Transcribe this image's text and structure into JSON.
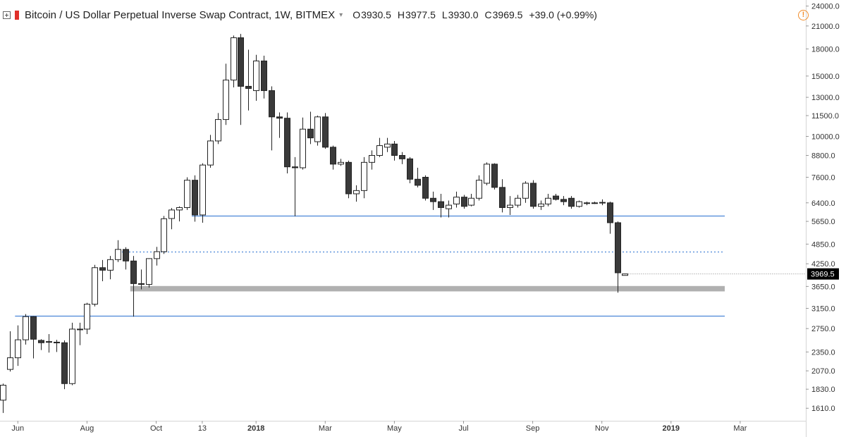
{
  "header": {
    "title": "Bitcoin / US Dollar Perpetual Inverse Swap Contract, 1W, BITMEX",
    "caret": "▾",
    "open_label": "O",
    "open": "3930.5",
    "high_label": "H",
    "high": "3977.5",
    "low_label": "L",
    "low": "3930.0",
    "close_label": "C",
    "close": "3969.5",
    "change": "+39.0 (+0.99%)",
    "alert": "!"
  },
  "colors": {
    "bull_fill": "#ffffff",
    "bear_fill": "#3a3a3a",
    "candle_outline": "#222222",
    "level_line": "#4a86d8",
    "zone": "#b0b0b0",
    "axis_border": "#d6d6d6",
    "price_label_bg": "#000000",
    "alert": "#f08c2a"
  },
  "chart_data": {
    "type": "candlestick",
    "interval": "1W",
    "y_scale": "log",
    "y_range": [
      1480,
      25000
    ],
    "y_ticks": [
      "24000.0",
      "21000.0",
      "18000.0",
      "15000.0",
      "13000.0",
      "11500.0",
      "10000.0",
      "8800.0",
      "7600.0",
      "6400.0",
      "5650.0",
      "4850.0",
      "4250.0",
      "3650.0",
      "3150.0",
      "2750.0",
      "2350.0",
      "2070.0",
      "1830.0",
      "1610.0"
    ],
    "last_price_label": "3969.5",
    "x_ticks": [
      {
        "label": "Jun",
        "week": 2,
        "bold": false
      },
      {
        "label": "Aug",
        "week": 11,
        "bold": false
      },
      {
        "label": "Oct",
        "week": 20,
        "bold": false
      },
      {
        "label": "13",
        "week": 26,
        "bold": false
      },
      {
        "label": "2018",
        "week": 33,
        "bold": true
      },
      {
        "label": "Mar",
        "week": 42,
        "bold": false
      },
      {
        "label": "May",
        "week": 51,
        "bold": false
      },
      {
        "label": "Jul",
        "week": 60,
        "bold": false
      },
      {
        "label": "Sep",
        "week": 69,
        "bold": false
      },
      {
        "label": "Nov",
        "week": 78,
        "bold": false
      },
      {
        "label": "2019",
        "week": 87,
        "bold": true
      },
      {
        "label": "Mar",
        "week": 96,
        "bold": false
      }
    ],
    "candles": [
      {
        "o": 1700,
        "h": 1900,
        "l": 1560,
        "c": 1880
      },
      {
        "o": 2090,
        "h": 2700,
        "l": 2060,
        "c": 2260
      },
      {
        "o": 2260,
        "h": 2810,
        "l": 2140,
        "c": 2550
      },
      {
        "o": 2550,
        "h": 3030,
        "l": 2470,
        "c": 2980
      },
      {
        "o": 2980,
        "h": 2990,
        "l": 2250,
        "c": 2560
      },
      {
        "o": 2540,
        "h": 2560,
        "l": 2380,
        "c": 2500
      },
      {
        "o": 2510,
        "h": 2650,
        "l": 2340,
        "c": 2520
      },
      {
        "o": 2510,
        "h": 2550,
        "l": 2350,
        "c": 2500
      },
      {
        "o": 2500,
        "h": 2540,
        "l": 1830,
        "c": 1900
      },
      {
        "o": 1900,
        "h": 2860,
        "l": 1880,
        "c": 2740
      },
      {
        "o": 2740,
        "h": 2860,
        "l": 2460,
        "c": 2740
      },
      {
        "o": 2740,
        "h": 3270,
        "l": 2650,
        "c": 3240
      },
      {
        "o": 3240,
        "h": 4220,
        "l": 3190,
        "c": 4140
      },
      {
        "o": 4140,
        "h": 4360,
        "l": 3780,
        "c": 4070
      },
      {
        "o": 4070,
        "h": 4480,
        "l": 3830,
        "c": 4370
      },
      {
        "o": 4370,
        "h": 4980,
        "l": 4300,
        "c": 4680
      },
      {
        "o": 4680,
        "h": 4750,
        "l": 4090,
        "c": 4330
      },
      {
        "o": 4330,
        "h": 4480,
        "l": 2980,
        "c": 3720
      },
      {
        "o": 3720,
        "h": 4090,
        "l": 3580,
        "c": 3700
      },
      {
        "o": 3700,
        "h": 4410,
        "l": 3620,
        "c": 4400
      },
      {
        "o": 4400,
        "h": 4760,
        "l": 4200,
        "c": 4610
      },
      {
        "o": 4610,
        "h": 5860,
        "l": 4540,
        "c": 5750
      },
      {
        "o": 5760,
        "h": 6180,
        "l": 5360,
        "c": 6100
      },
      {
        "o": 6100,
        "h": 6250,
        "l": 5650,
        "c": 6200
      },
      {
        "o": 6200,
        "h": 7600,
        "l": 6100,
        "c": 7450
      },
      {
        "o": 7450,
        "h": 7700,
        "l": 5640,
        "c": 5900
      },
      {
        "o": 5900,
        "h": 8350,
        "l": 5600,
        "c": 8250
      },
      {
        "o": 8250,
        "h": 10100,
        "l": 8100,
        "c": 9700
      },
      {
        "o": 9700,
        "h": 11700,
        "l": 9500,
        "c": 11200
      },
      {
        "o": 11200,
        "h": 16300,
        "l": 10800,
        "c": 14600
      },
      {
        "o": 14600,
        "h": 19700,
        "l": 13900,
        "c": 19400
      },
      {
        "o": 19400,
        "h": 19900,
        "l": 10800,
        "c": 14000
      },
      {
        "o": 14000,
        "h": 17900,
        "l": 11900,
        "c": 13800
      },
      {
        "o": 13600,
        "h": 17300,
        "l": 12700,
        "c": 16600
      },
      {
        "o": 16600,
        "h": 17200,
        "l": 12900,
        "c": 13600
      },
      {
        "o": 13600,
        "h": 14000,
        "l": 9100,
        "c": 11400
      },
      {
        "o": 11400,
        "h": 11750,
        "l": 9900,
        "c": 11300
      },
      {
        "o": 11300,
        "h": 11750,
        "l": 7800,
        "c": 8150
      },
      {
        "o": 8150,
        "h": 8700,
        "l": 5850,
        "c": 8100
      },
      {
        "o": 8100,
        "h": 11350,
        "l": 8000,
        "c": 10500
      },
      {
        "o": 10500,
        "h": 11800,
        "l": 9500,
        "c": 9900
      },
      {
        "o": 9650,
        "h": 11500,
        "l": 9400,
        "c": 11400
      },
      {
        "o": 11400,
        "h": 11700,
        "l": 9200,
        "c": 9300
      },
      {
        "o": 9300,
        "h": 9400,
        "l": 8000,
        "c": 8300
      },
      {
        "o": 8300,
        "h": 8600,
        "l": 8200,
        "c": 8400
      },
      {
        "o": 8400,
        "h": 8500,
        "l": 6600,
        "c": 6800
      },
      {
        "o": 6800,
        "h": 7200,
        "l": 6450,
        "c": 6950
      },
      {
        "o": 6950,
        "h": 8700,
        "l": 6600,
        "c": 8400
      },
      {
        "o": 8400,
        "h": 9100,
        "l": 8000,
        "c": 8800
      },
      {
        "o": 8800,
        "h": 9900,
        "l": 8700,
        "c": 9400
      },
      {
        "o": 9300,
        "h": 9900,
        "l": 9000,
        "c": 9500
      },
      {
        "o": 9500,
        "h": 9700,
        "l": 8500,
        "c": 8800
      },
      {
        "o": 8800,
        "h": 9000,
        "l": 8300,
        "c": 8600
      },
      {
        "o": 8600,
        "h": 8700,
        "l": 7300,
        "c": 7500
      },
      {
        "o": 7500,
        "h": 8100,
        "l": 7100,
        "c": 7200
      },
      {
        "o": 7600,
        "h": 7700,
        "l": 6500,
        "c": 6600
      },
      {
        "o": 6600,
        "h": 6900,
        "l": 6100,
        "c": 6450
      },
      {
        "o": 6450,
        "h": 6800,
        "l": 5800,
        "c": 6200
      },
      {
        "o": 6150,
        "h": 6500,
        "l": 5800,
        "c": 6300
      },
      {
        "o": 6350,
        "h": 6900,
        "l": 6200,
        "c": 6650
      },
      {
        "o": 6650,
        "h": 6750,
        "l": 6150,
        "c": 6250
      },
      {
        "o": 6300,
        "h": 6800,
        "l": 6250,
        "c": 6600
      },
      {
        "o": 6600,
        "h": 7700,
        "l": 6500,
        "c": 7450
      },
      {
        "o": 7300,
        "h": 8400,
        "l": 7200,
        "c": 8300
      },
      {
        "o": 8300,
        "h": 8350,
        "l": 7000,
        "c": 7100
      },
      {
        "o": 7100,
        "h": 7500,
        "l": 6000,
        "c": 6200
      },
      {
        "o": 6200,
        "h": 6700,
        "l": 5900,
        "c": 6300
      },
      {
        "o": 6300,
        "h": 6750,
        "l": 6200,
        "c": 6600
      },
      {
        "o": 6600,
        "h": 7400,
        "l": 6400,
        "c": 7300
      },
      {
        "o": 7300,
        "h": 7450,
        "l": 6150,
        "c": 6250
      },
      {
        "o": 6250,
        "h": 6500,
        "l": 6100,
        "c": 6350
      },
      {
        "o": 6350,
        "h": 6800,
        "l": 6250,
        "c": 6600
      },
      {
        "o": 6700,
        "h": 6800,
        "l": 6500,
        "c": 6550
      },
      {
        "o": 6550,
        "h": 6700,
        "l": 6300,
        "c": 6450
      },
      {
        "o": 6600,
        "h": 6700,
        "l": 6150,
        "c": 6250
      },
      {
        "o": 6250,
        "h": 6500,
        "l": 6200,
        "c": 6450
      },
      {
        "o": 6400,
        "h": 6450,
        "l": 6300,
        "c": 6400
      },
      {
        "o": 6400,
        "h": 6450,
        "l": 6350,
        "c": 6400
      },
      {
        "o": 6420,
        "h": 6550,
        "l": 6300,
        "c": 6400
      },
      {
        "o": 6400,
        "h": 6450,
        "l": 5200,
        "c": 5600
      },
      {
        "o": 5600,
        "h": 5650,
        "l": 3500,
        "c": 4000
      },
      {
        "o": 3930.5,
        "h": 3977.5,
        "l": 3930,
        "c": 3969.5
      }
    ],
    "levels": [
      {
        "price": 5860,
        "style": "solid",
        "from_week": 25
      },
      {
        "price": 4620,
        "style": "dotted",
        "from_week": 15
      },
      {
        "price": 3000,
        "style": "solid",
        "from_week": 2
      }
    ],
    "zone": {
      "low": 3530,
      "high": 3660,
      "from_week": 17
    }
  }
}
